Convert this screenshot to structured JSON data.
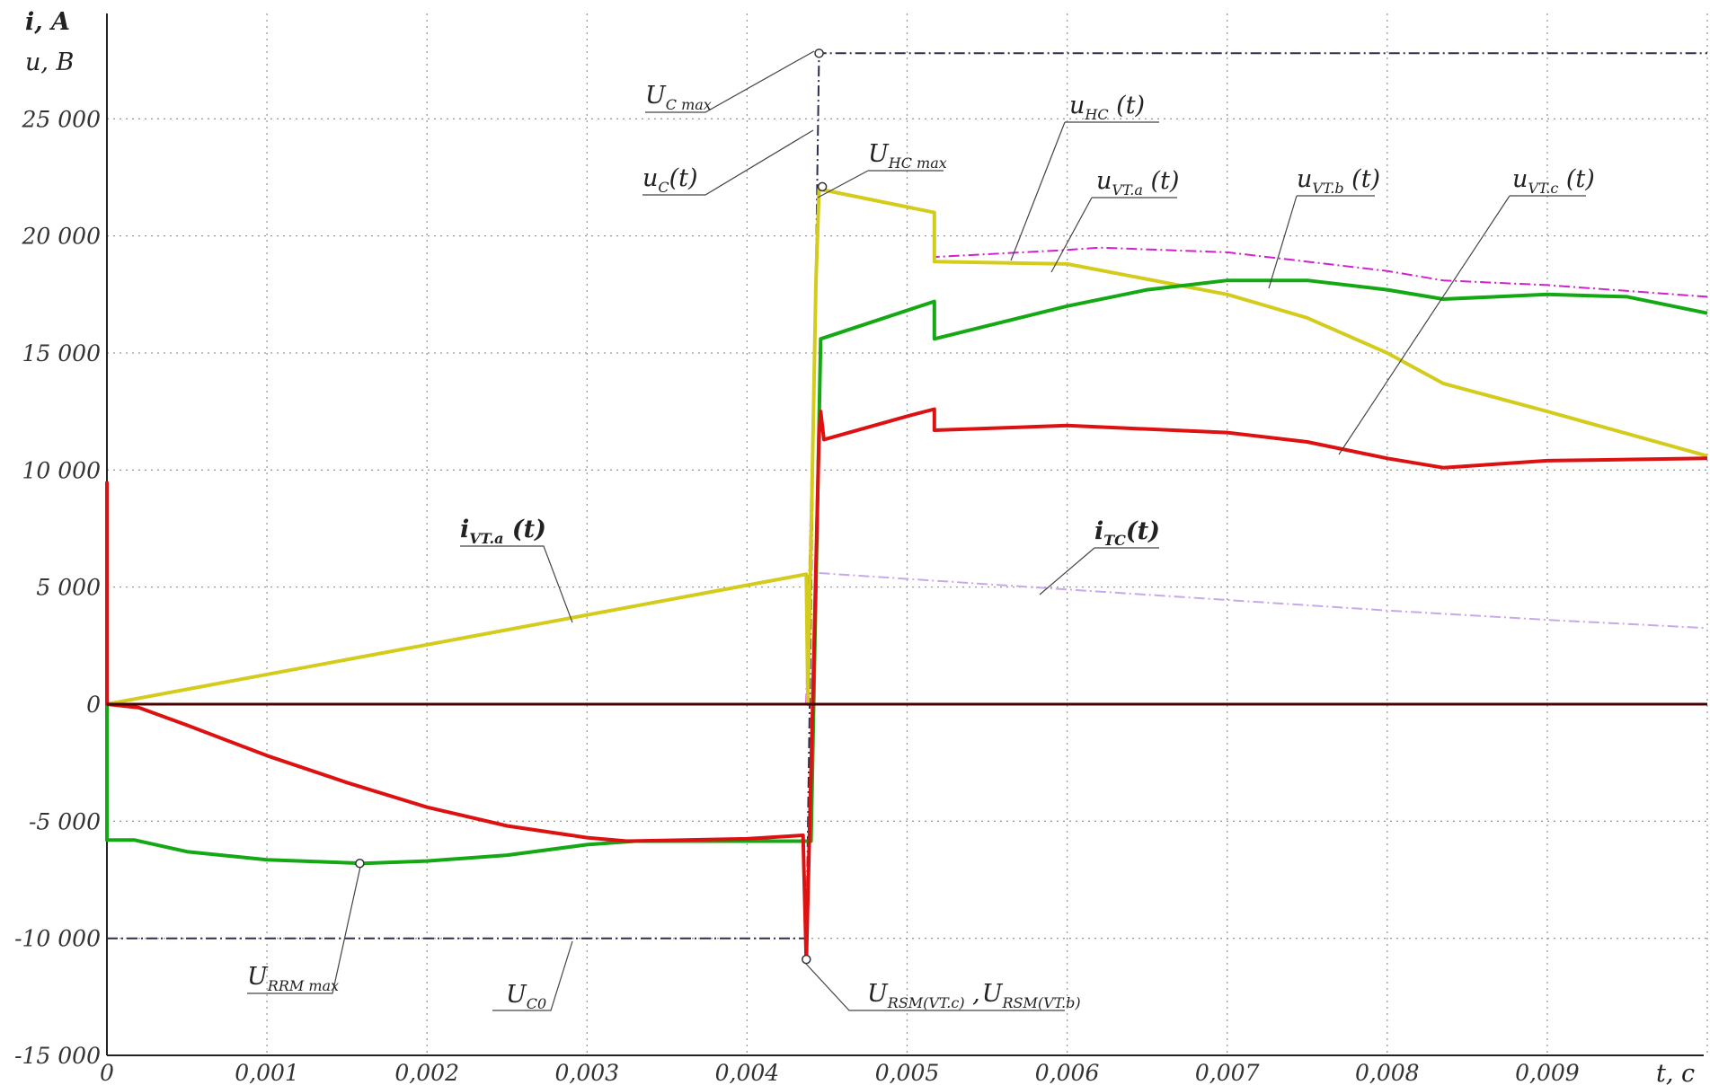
{
  "chart_data": {
    "type": "line",
    "axes": {
      "y_label_1": "i, A",
      "y_label_2": "u, B",
      "x_label": "t, c",
      "xlim": [
        0,
        0.01
      ],
      "ylim": [
        -15000,
        29500
      ],
      "grid": true,
      "x_ticks": [
        {
          "v": 0,
          "label": "0"
        },
        {
          "v": 0.001,
          "label": "0,001"
        },
        {
          "v": 0.002,
          "label": "0,002"
        },
        {
          "v": 0.003,
          "label": "0,003"
        },
        {
          "v": 0.004,
          "label": "0,004"
        },
        {
          "v": 0.005,
          "label": "0,005"
        },
        {
          "v": 0.006,
          "label": "0,006"
        },
        {
          "v": 0.007,
          "label": "0,007"
        },
        {
          "v": 0.008,
          "label": "0,008"
        },
        {
          "v": 0.009,
          "label": "0,009"
        }
      ],
      "y_ticks": [
        {
          "v": 25000,
          "label": "25 000"
        },
        {
          "v": 20000,
          "label": "20 000"
        },
        {
          "v": 15000,
          "label": "15 000"
        },
        {
          "v": 10000,
          "label": "10 000"
        },
        {
          "v": 5000,
          "label": "5 000"
        },
        {
          "v": 0,
          "label": "0"
        },
        {
          "v": -5000,
          "label": "-5 000"
        },
        {
          "v": -10000,
          "label": "-10 000"
        },
        {
          "v": -15000,
          "label": "-15 000"
        }
      ]
    },
    "series": [
      {
        "name": "u_C(t)",
        "color": "#2a2f4a",
        "dash": "dashed",
        "points": [
          [
            0,
            -10000
          ],
          [
            0.00437,
            -10000
          ],
          [
            0.00445,
            27800
          ],
          [
            0.01,
            27800
          ]
        ]
      },
      {
        "name": "i_TC(t)",
        "color": "#c9a8e8",
        "dash": "dashed",
        "points": [
          [
            0.00445,
            5600
          ],
          [
            0.005,
            5350
          ],
          [
            0.006,
            4900
          ],
          [
            0.007,
            4450
          ],
          [
            0.008,
            4000
          ],
          [
            0.009,
            3600
          ],
          [
            0.01,
            3250
          ]
        ]
      },
      {
        "name": "u_HC(t)",
        "color": "#d020d0",
        "dash": "dashed",
        "points": [
          [
            0.00437,
            0
          ],
          [
            0.00443,
            18000
          ],
          [
            0.00445,
            22000
          ],
          [
            0.00517,
            21000
          ],
          [
            0.00517,
            19100
          ],
          [
            0.006,
            19400
          ],
          [
            0.0062,
            19500
          ],
          [
            0.007,
            19300
          ],
          [
            0.008,
            18500
          ],
          [
            0.00835,
            18100
          ],
          [
            0.009,
            17900
          ],
          [
            0.01,
            17400
          ]
        ]
      },
      {
        "name": "i_VT.a(t)",
        "color": "#d4cc1c",
        "dash": "solid",
        "points": [
          [
            0,
            0
          ],
          [
            0.00437,
            5550
          ],
          [
            0.00438,
            0
          ],
          [
            0.00443,
            18000
          ],
          [
            0.00445,
            22000
          ],
          [
            0.00517,
            21000
          ],
          [
            0.00517,
            18900
          ],
          [
            0.006,
            18800
          ],
          [
            0.007,
            17500
          ],
          [
            0.0075,
            16500
          ],
          [
            0.008,
            15000
          ],
          [
            0.00835,
            13700
          ],
          [
            0.009,
            12500
          ],
          [
            0.01,
            10600
          ]
        ]
      },
      {
        "name": "u_VT.b(t)",
        "color": "#14a814",
        "dash": "solid",
        "points": [
          [
            0,
            0
          ],
          [
            0,
            -5800
          ],
          [
            0.00017,
            -5800
          ],
          [
            0.0005,
            -6300
          ],
          [
            0.001,
            -6650
          ],
          [
            0.0016,
            -6800
          ],
          [
            0.002,
            -6700
          ],
          [
            0.0025,
            -6450
          ],
          [
            0.003,
            -6000
          ],
          [
            0.0033,
            -5850
          ],
          [
            0.0044,
            -5850
          ],
          [
            0.00445,
            12000
          ],
          [
            0.00446,
            15600
          ],
          [
            0.00517,
            17200
          ],
          [
            0.00517,
            15600
          ],
          [
            0.006,
            17000
          ],
          [
            0.0065,
            17700
          ],
          [
            0.007,
            18100
          ],
          [
            0.0075,
            18100
          ],
          [
            0.008,
            17700
          ],
          [
            0.00835,
            17300
          ],
          [
            0.009,
            17500
          ],
          [
            0.0095,
            17400
          ],
          [
            0.01,
            16700
          ]
        ]
      },
      {
        "name": "u_VT.c(t)",
        "color": "#dd1111",
        "dash": "solid",
        "points": [
          [
            0,
            9500
          ],
          [
            0,
            0
          ],
          [
            0.0002,
            -150
          ],
          [
            0.0005,
            -900
          ],
          [
            0.001,
            -2200
          ],
          [
            0.0015,
            -3350
          ],
          [
            0.002,
            -4400
          ],
          [
            0.0025,
            -5200
          ],
          [
            0.003,
            -5700
          ],
          [
            0.00325,
            -5850
          ],
          [
            0.004,
            -5750
          ],
          [
            0.00435,
            -5600
          ],
          [
            0.00437,
            -11000
          ],
          [
            0.00441,
            0
          ],
          [
            0.00445,
            11500
          ],
          [
            0.00446,
            12500
          ],
          [
            0.00448,
            11300
          ],
          [
            0.005,
            12300
          ],
          [
            0.00517,
            12600
          ],
          [
            0.00517,
            11700
          ],
          [
            0.006,
            11900
          ],
          [
            0.007,
            11600
          ],
          [
            0.0075,
            11200
          ],
          [
            0.008,
            10500
          ],
          [
            0.00835,
            10100
          ],
          [
            0.009,
            10400
          ],
          [
            0.01,
            10500
          ]
        ]
      },
      {
        "name": "zero",
        "color": "#4a0000",
        "dash": "solid",
        "points": [
          [
            0,
            0
          ],
          [
            0.01,
            0
          ]
        ]
      }
    ],
    "markers": [
      {
        "name": "U_Cmax",
        "x": 0.00445,
        "y": 27800
      },
      {
        "name": "U_HCmax",
        "x": 0.00447,
        "y": 22100
      },
      {
        "name": "U_RRMmax",
        "x": 0.00158,
        "y": -6800
      },
      {
        "name": "U_RSM",
        "x": 0.00437,
        "y": -10900
      }
    ],
    "annotations": [
      {
        "key": "uc_max",
        "main": "U",
        "sub": "C max",
        "bold": false
      },
      {
        "key": "uc_t",
        "main": "u",
        "sub": "C",
        "rest": "(t)",
        "bold": false
      },
      {
        "key": "uhc_max",
        "main": "U",
        "sub": "HC max",
        "bold": false
      },
      {
        "key": "uhc_t",
        "main": "u",
        "sub": "HC",
        "rest": " (t)",
        "bold": false
      },
      {
        "key": "uvta_t",
        "main": "u",
        "sub": "VT.a",
        "rest": " (t)",
        "bold": false
      },
      {
        "key": "uvtb_t",
        "main": "u",
        "sub": "VT.b",
        "rest": " (t)",
        "bold": false
      },
      {
        "key": "uvtc_t",
        "main": "u",
        "sub": "VT.c",
        "rest": " (t)",
        "bold": false
      },
      {
        "key": "ivta_t",
        "main": "i",
        "sub": "VT.a",
        "rest": " (t)",
        "bold": true
      },
      {
        "key": "itc_t",
        "main": "i",
        "sub": "TC",
        "rest": "(t)",
        "bold": true
      },
      {
        "key": "urrm",
        "main": "U",
        "sub": "RRM max",
        "bold": false
      },
      {
        "key": "uc0",
        "main": "U",
        "sub": "C0",
        "bold": false
      },
      {
        "key": "ursm",
        "main": "U",
        "sub": "RSM(VT.c)",
        "rest": " ,",
        "main2": "U",
        "sub2": "RSM(VT.b)",
        "bold": false
      }
    ]
  }
}
